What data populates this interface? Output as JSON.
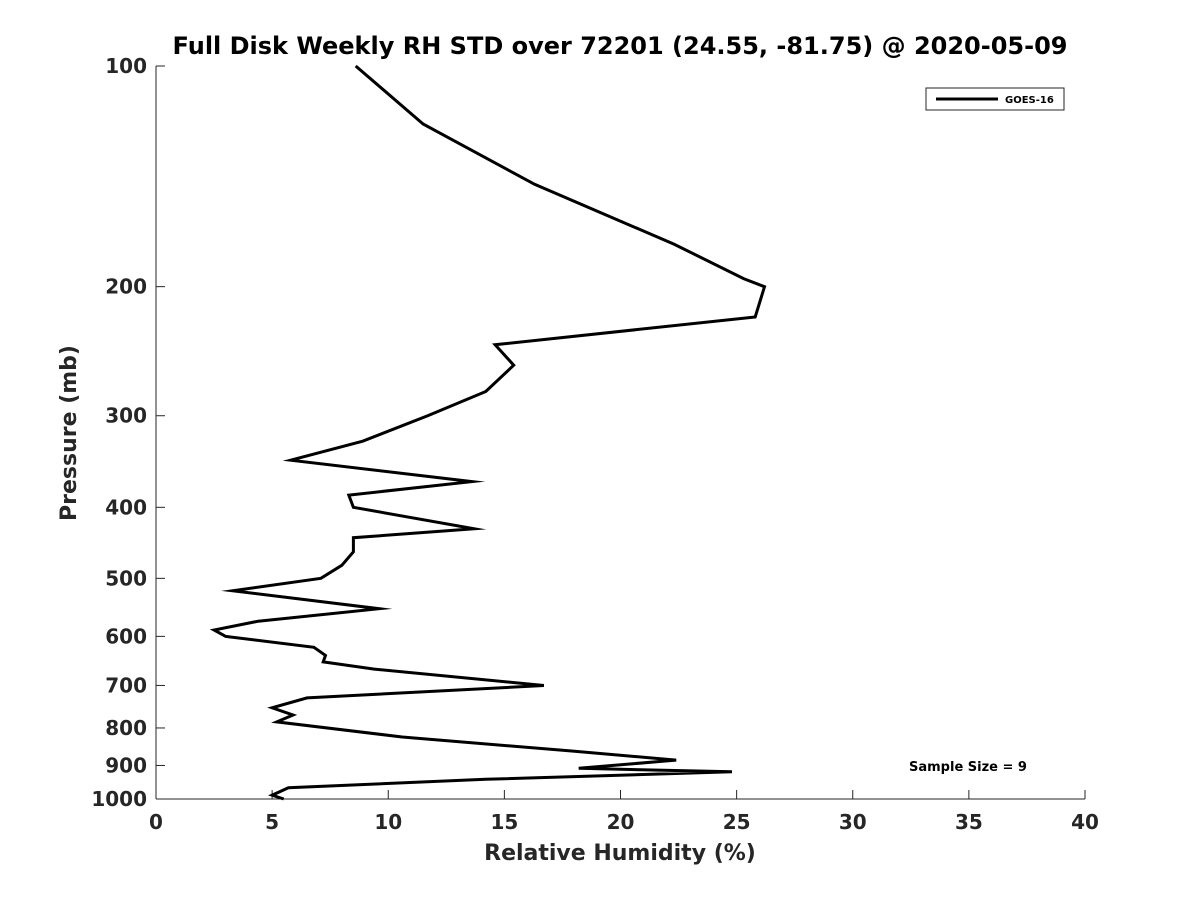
{
  "chart_data": {
    "type": "line",
    "title": "Full Disk Weekly RH STD over 72201 (24.55, -81.75) @ 2020-05-09",
    "xlabel": "Relative Humidity (%)",
    "ylabel": "Pressure (mb)",
    "xlim": [
      0,
      40
    ],
    "ylim": [
      100,
      1000
    ],
    "y_scale": "log",
    "y_reversed": true,
    "xticks": [
      0,
      5,
      10,
      15,
      20,
      25,
      30,
      35,
      40
    ],
    "yticks": [
      100,
      200,
      300,
      400,
      500,
      600,
      700,
      800,
      900,
      1000
    ],
    "grid": false,
    "legend": {
      "position": "top-right",
      "entries": [
        "GOES-16"
      ]
    },
    "annotation": "Sample Size = 9",
    "series": [
      {
        "name": "GOES-16",
        "color": "#000000",
        "x": [
          8.6,
          11.5,
          16.3,
          22.3,
          25.3,
          26.2,
          25.8,
          14.6,
          15.4,
          14.2,
          11.7,
          8.9,
          5.8,
          13.6,
          8.3,
          8.5,
          13.7,
          8.5,
          8.5,
          8.0,
          7.1,
          3.3,
          9.6,
          4.4,
          2.5,
          3.0,
          6.8,
          7.3,
          7.2,
          9.4,
          16.7,
          6.5,
          5.0,
          5.9,
          5.2,
          10.6,
          17.9,
          22.4,
          18.2,
          24.8,
          14.2,
          5.7,
          5.0,
          5.5
        ],
        "y": [
          100,
          120,
          145,
          175,
          195,
          200,
          220,
          240,
          256,
          278,
          300,
          325,
          345,
          369,
          385,
          400,
          428,
          440,
          460,
          480,
          500,
          520,
          550,
          572,
          588,
          600,
          621,
          637,
          650,
          665,
          700,
          728,
          751,
          768,
          785,
          823,
          860,
          885,
          908,
          918,
          940,
          965,
          988,
          1000
        ]
      }
    ]
  }
}
